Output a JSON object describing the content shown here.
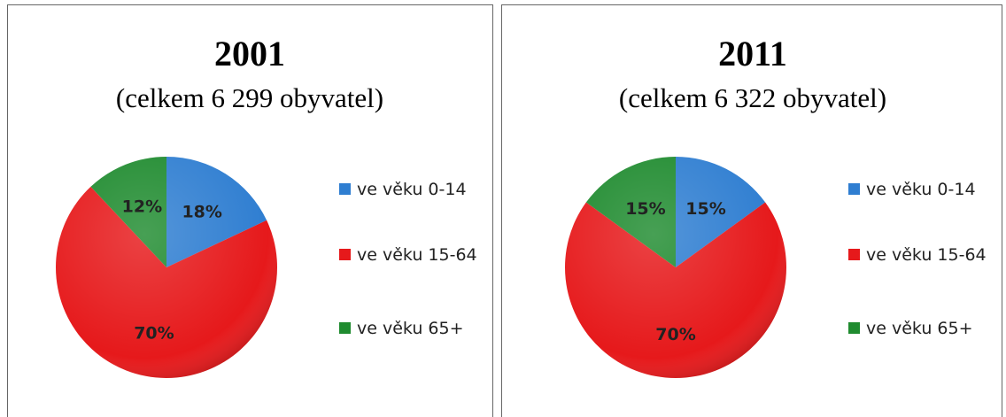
{
  "chart_data": [
    {
      "type": "pie",
      "title": "2001",
      "subtitle": "(celkem 6 299 obyvatel)",
      "categories": [
        "ve věku 0-14",
        "ve věku 15-64",
        "ve věku 65+"
      ],
      "values": [
        18,
        70,
        12
      ],
      "value_labels": [
        "18%",
        "70%",
        "12%"
      ],
      "colors": [
        "#2f7ed1",
        "#e6191b",
        "#1f8b2f"
      ]
    },
    {
      "type": "pie",
      "title": "2011",
      "subtitle": "(celkem 6 322 obyvatel)",
      "categories": [
        "ve věku 0-14",
        "ve věku 15-64",
        "ve věku 65+"
      ],
      "values": [
        15,
        70,
        15
      ],
      "value_labels": [
        "15%",
        "70%",
        "15%"
      ],
      "colors": [
        "#2f7ed1",
        "#e6191b",
        "#1f8b2f"
      ]
    }
  ]
}
